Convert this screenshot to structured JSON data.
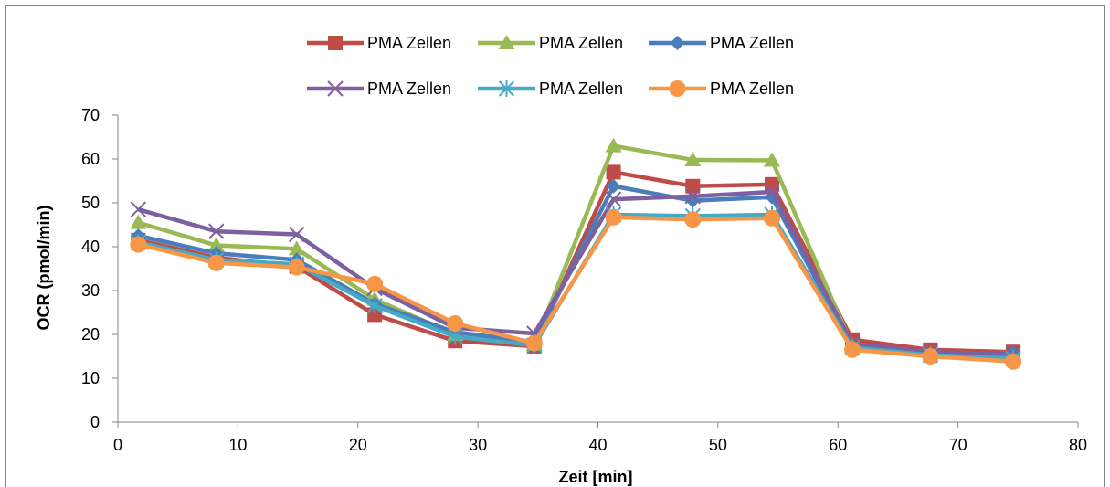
{
  "chart_data": {
    "type": "line",
    "title": "",
    "xlabel": "Zeit [min]",
    "ylabel": "OCR (pmol/min)",
    "xlim": [
      0,
      80
    ],
    "ylim": [
      0,
      70
    ],
    "xticks": [
      0,
      10,
      20,
      30,
      40,
      50,
      60,
      70,
      80
    ],
    "yticks": [
      0,
      10,
      20,
      30,
      40,
      50,
      60,
      70
    ],
    "xtick_labels": [
      "0",
      "10",
      "20",
      "30",
      "40",
      "50",
      "60",
      "70",
      "80"
    ],
    "ytick_labels": [
      "0",
      "10",
      "20",
      "30",
      "40",
      "50",
      "60",
      "70"
    ],
    "grid": false,
    "legend_position": "top",
    "x": [
      1.7,
      8.2,
      14.9,
      21.4,
      28.1,
      34.7,
      41.3,
      47.9,
      54.5,
      61.2,
      67.7,
      74.6
    ],
    "series": [
      {
        "name": "PMA Zellen",
        "color": "#be4b48",
        "marker": "square",
        "values": [
          41.5,
          37.5,
          35.5,
          24.5,
          18.5,
          17.3,
          57.0,
          53.8,
          54.2,
          18.8,
          16.5,
          16.0
        ]
      },
      {
        "name": "PMA Zellen",
        "color": "#98b954",
        "marker": "triangle",
        "values": [
          45.5,
          40.3,
          39.5,
          28.0,
          20.0,
          17.7,
          63.0,
          59.8,
          59.7,
          17.3,
          15.5,
          14.5
        ]
      },
      {
        "name": "PMA Zellen",
        "color": "#4a7ebb",
        "marker": "diamond",
        "values": [
          42.5,
          38.5,
          37.0,
          27.0,
          20.5,
          18.3,
          53.8,
          50.5,
          51.3,
          17.0,
          15.5,
          15.8
        ]
      },
      {
        "name": "PMA Zellen",
        "color": "#7d60a0",
        "marker": "x",
        "values": [
          48.5,
          43.5,
          42.8,
          30.5,
          21.5,
          20.2,
          50.8,
          51.5,
          52.5,
          17.8,
          16.0,
          15.5
        ]
      },
      {
        "name": "PMA Zellen",
        "color": "#46aac5",
        "marker": "star",
        "values": [
          41.0,
          37.0,
          36.0,
          26.5,
          19.5,
          17.5,
          47.3,
          47.0,
          47.3,
          17.0,
          15.3,
          14.5
        ]
      },
      {
        "name": "PMA Zellen",
        "color": "#f79646",
        "marker": "circle",
        "values": [
          40.5,
          36.3,
          35.3,
          31.5,
          22.5,
          18.0,
          46.7,
          46.2,
          46.5,
          16.5,
          15.0,
          13.8
        ]
      }
    ]
  }
}
